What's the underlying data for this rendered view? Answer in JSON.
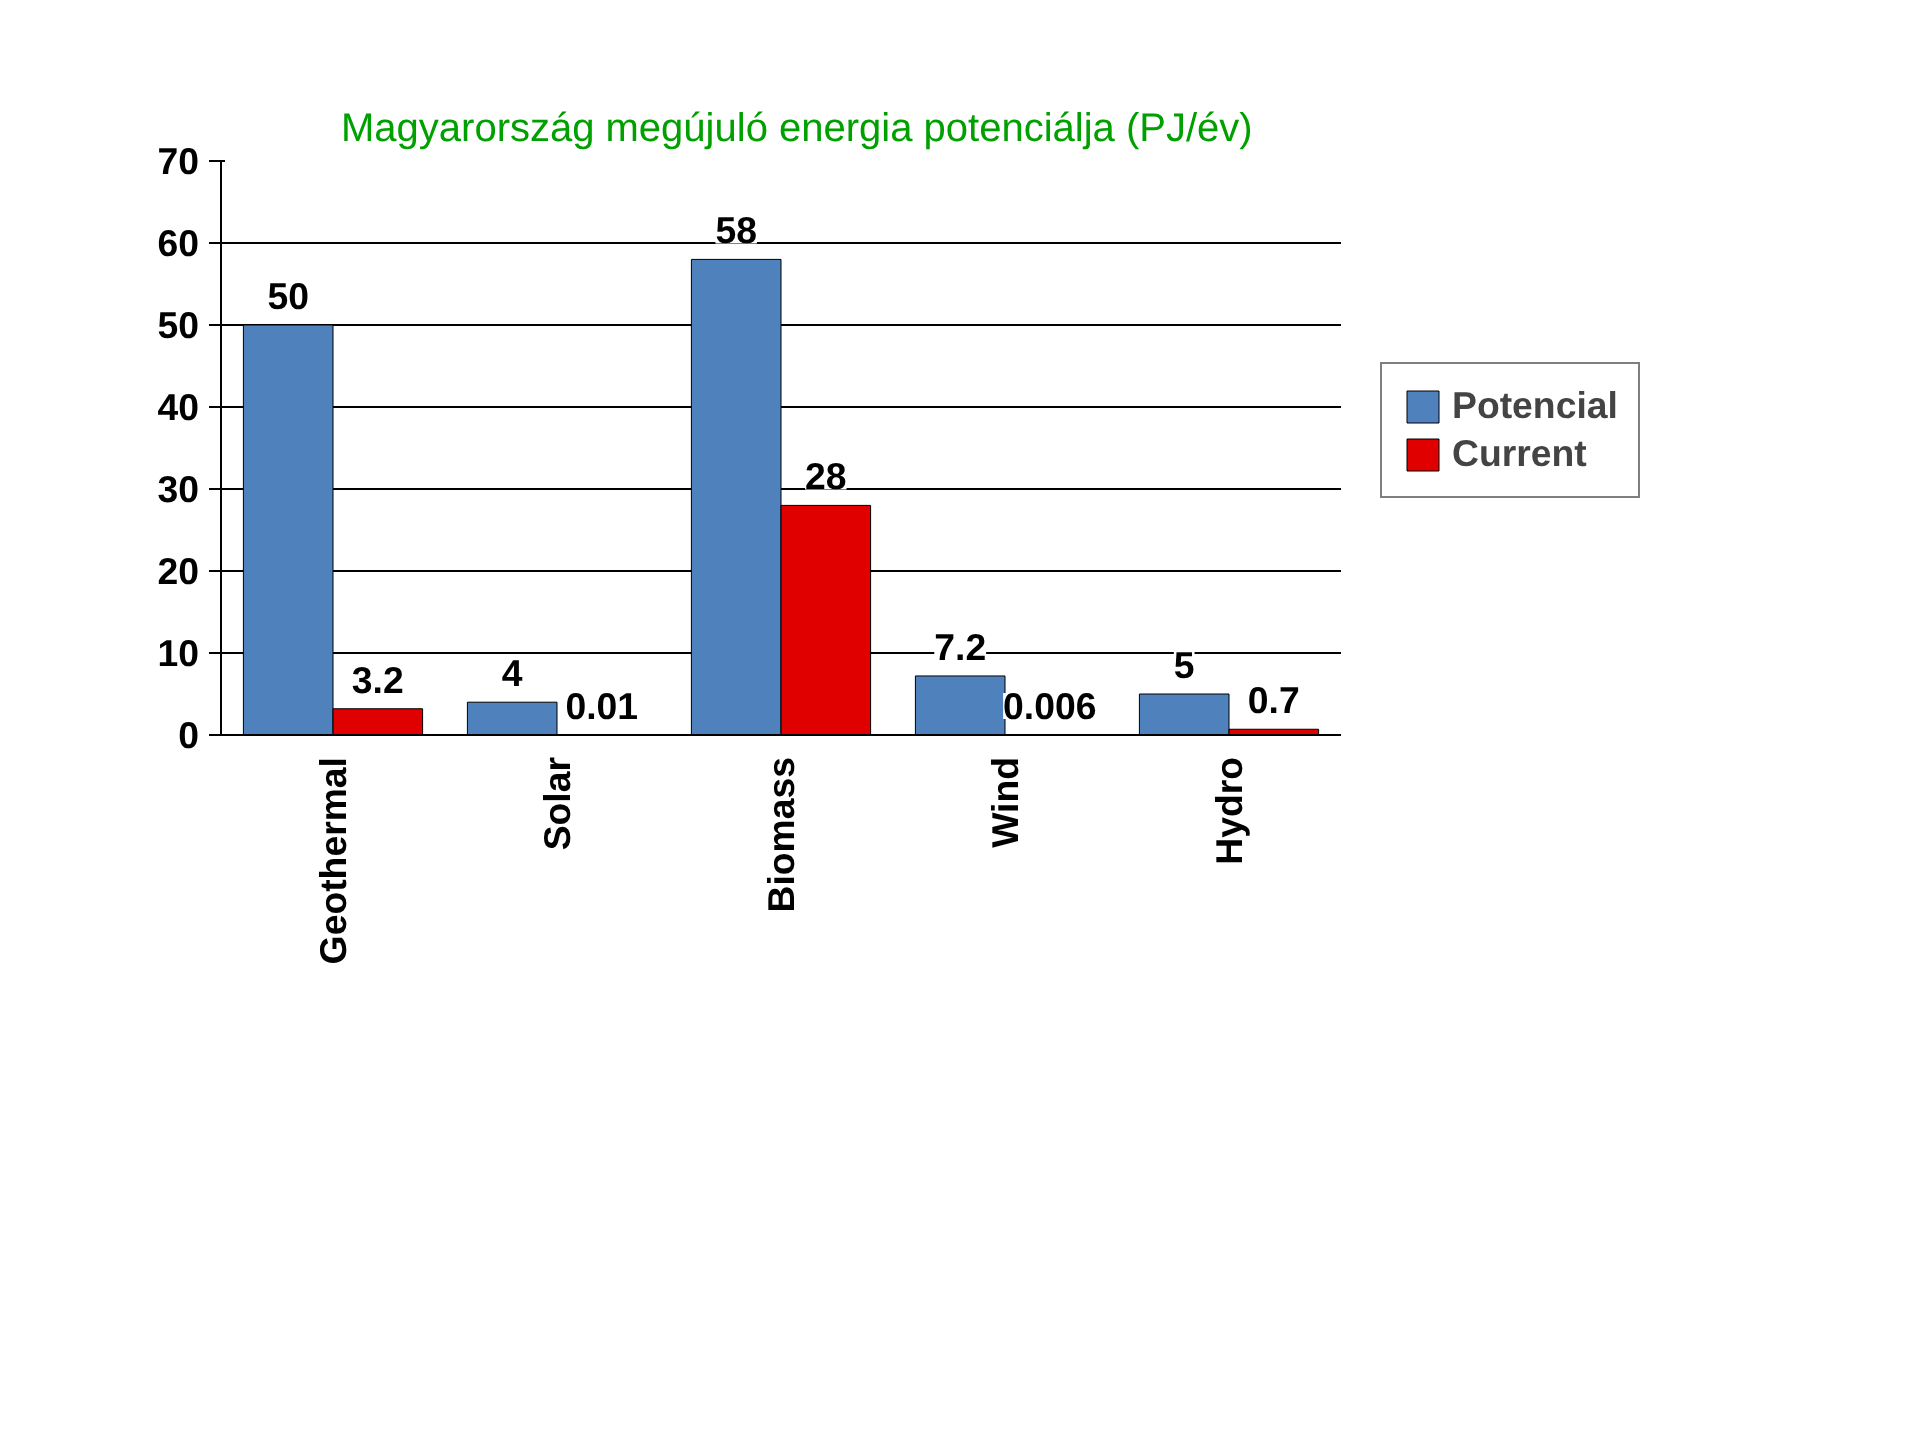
{
  "chart_data": {
    "type": "bar",
    "title": "Magyarország megújuló energia potenciálja  (PJ/év)",
    "categories": [
      "Geothermal",
      "Solar",
      "Biomass",
      "Wind",
      "Hydro"
    ],
    "series": [
      {
        "name": "Potencial",
        "color": "#4f81bd",
        "values": [
          50,
          4,
          58,
          7.2,
          5
        ]
      },
      {
        "name": "Current",
        "color": "#e00000",
        "values": [
          3.2,
          0.01,
          28,
          0.006,
          0.7
        ]
      }
    ],
    "ylim": [
      0,
      70
    ],
    "yticks": [
      0,
      10,
      20,
      30,
      40,
      50,
      60,
      70
    ],
    "grid": "y",
    "legend": "right",
    "data_labels": true
  }
}
